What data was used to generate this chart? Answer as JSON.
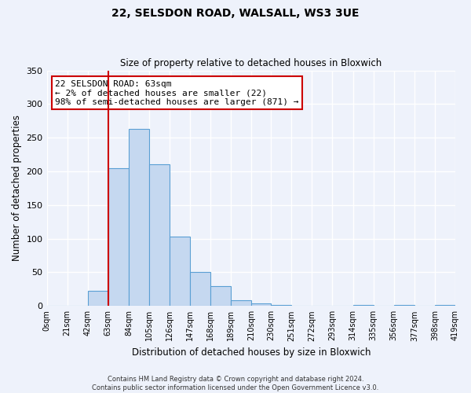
{
  "title": "22, SELSDON ROAD, WALSALL, WS3 3UE",
  "subtitle": "Size of property relative to detached houses in Bloxwich",
  "xlabel": "Distribution of detached houses by size in Bloxwich",
  "ylabel": "Number of detached properties",
  "bin_edges": [
    0,
    21,
    42,
    63,
    84,
    105,
    126,
    147,
    168,
    189,
    210,
    230,
    251,
    272,
    293,
    314,
    335,
    356,
    377,
    398,
    419
  ],
  "bin_labels": [
    "0sqm",
    "21sqm",
    "42sqm",
    "63sqm",
    "84sqm",
    "105sqm",
    "126sqm",
    "147sqm",
    "168sqm",
    "189sqm",
    "210sqm",
    "230sqm",
    "251sqm",
    "272sqm",
    "293sqm",
    "314sqm",
    "335sqm",
    "356sqm",
    "377sqm",
    "398sqm",
    "419sqm"
  ],
  "bar_heights": [
    0,
    0,
    22,
    205,
    263,
    211,
    103,
    50,
    29,
    8,
    4,
    2,
    0,
    0,
    0,
    2,
    0,
    1,
    0,
    1
  ],
  "bar_color": "#c5d8f0",
  "bar_edge_color": "#5a9fd4",
  "vline_x": 63,
  "vline_color": "#cc0000",
  "ylim": [
    0,
    350
  ],
  "yticks": [
    0,
    50,
    100,
    150,
    200,
    250,
    300,
    350
  ],
  "annotation_title": "22 SELSDON ROAD: 63sqm",
  "annotation_line1": "← 2% of detached houses are smaller (22)",
  "annotation_line2": "98% of semi-detached houses are larger (871) →",
  "annotation_box_color": "#cc0000",
  "footer_line1": "Contains HM Land Registry data © Crown copyright and database right 2024.",
  "footer_line2": "Contains public sector information licensed under the Open Government Licence v3.0.",
  "background_color": "#eef2fb",
  "grid_color": "#ffffff"
}
